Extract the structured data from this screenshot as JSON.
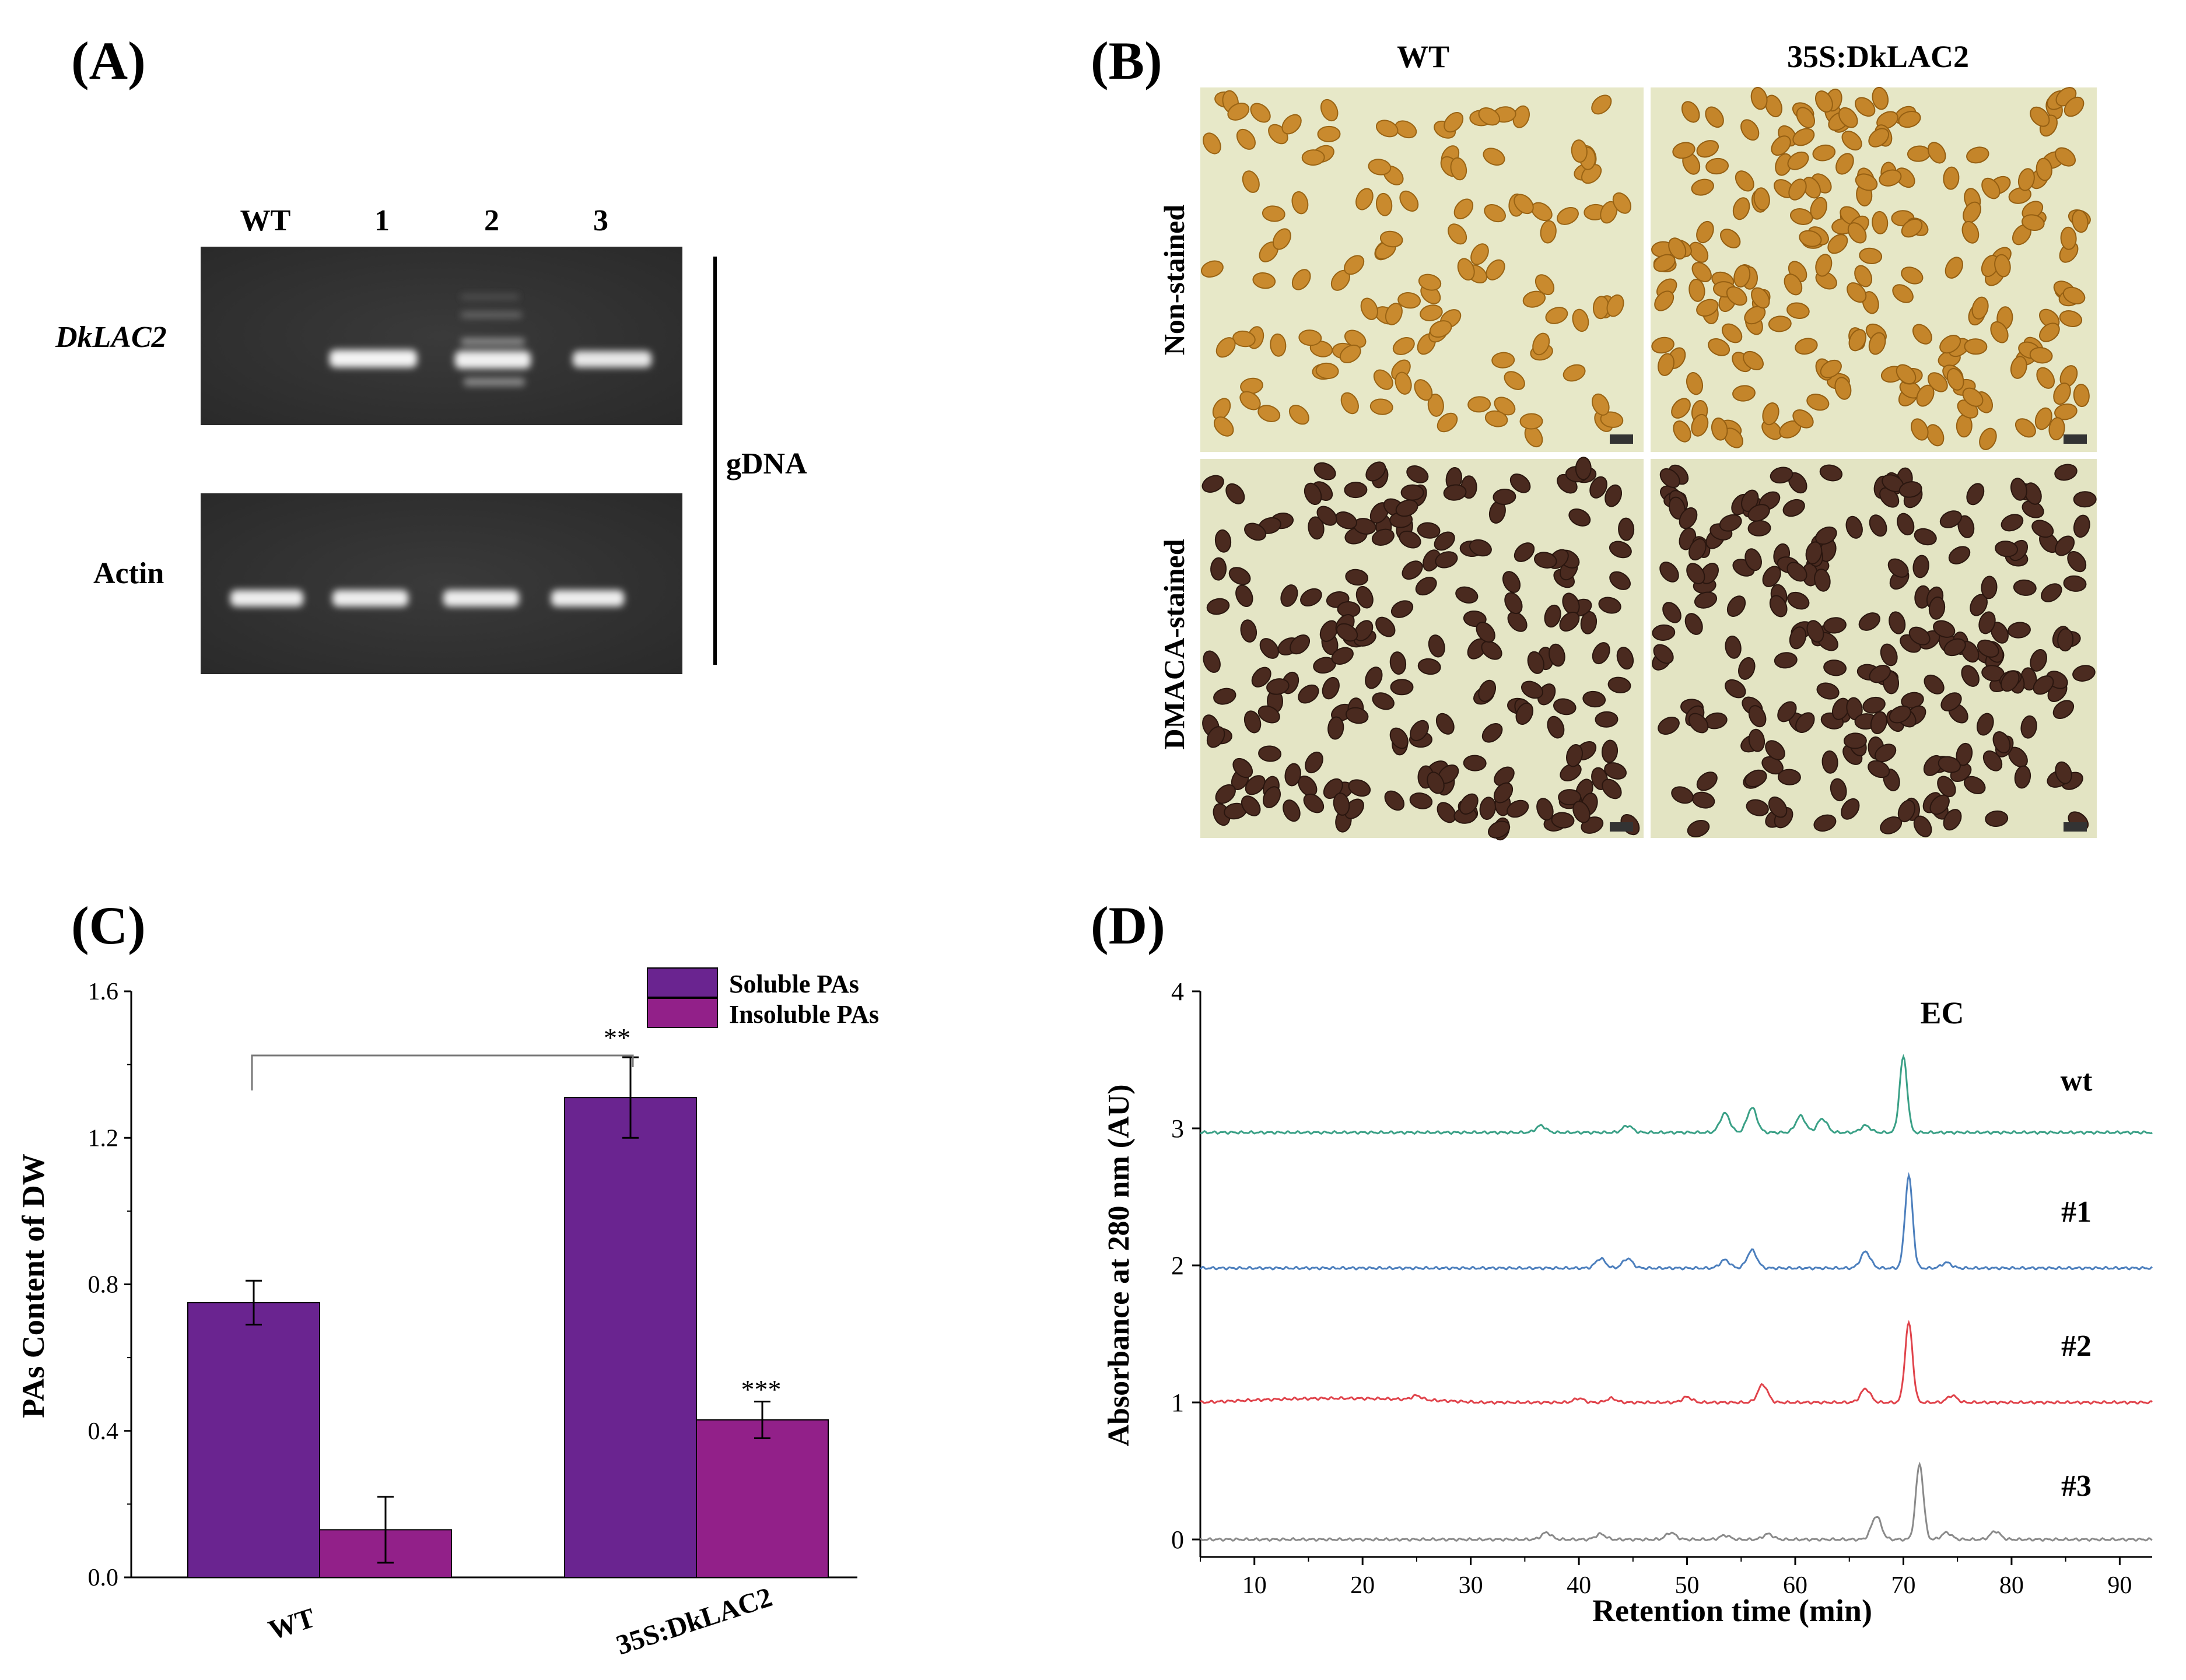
{
  "panels": {
    "a": {
      "label": "(A)",
      "lanes": [
        "WT",
        "1",
        "2",
        "3"
      ],
      "rows": [
        "DkLAC2",
        "Actin"
      ],
      "bracket_label": "gDNA"
    },
    "b": {
      "label": "(B)",
      "columns": [
        "WT",
        "35S:DkLAC2"
      ],
      "rows": [
        "Non-stained",
        "DMACA-stained"
      ]
    },
    "c": {
      "label": "(C)",
      "significance": [
        "**",
        "***"
      ]
    },
    "d": {
      "label": "(D)",
      "peak_label": "EC"
    }
  },
  "colors": {
    "soluble": "#6a2490",
    "insoluble": "#922089",
    "wt_trace": "#3aa086",
    "trace1": "#4c7fbd",
    "trace2": "#e0434b",
    "trace3": "#8a8a8a"
  },
  "chart_data": [
    {
      "type": "bar",
      "panel": "C",
      "categories": [
        "WT",
        "35S:DkLAC2"
      ],
      "series": [
        {
          "name": "Soluble PAs",
          "values": [
            0.75,
            1.31
          ],
          "errors": [
            0.06,
            0.11
          ]
        },
        {
          "name": "Insoluble PAs",
          "values": [
            0.13,
            0.43
          ],
          "errors": [
            0.09,
            0.05
          ]
        }
      ],
      "ylabel": "PAs Content of  DW",
      "xlabel": "",
      "ylim": [
        0.0,
        1.6
      ],
      "yticks": [
        "0.0",
        "0.4",
        "0.8",
        "1.2",
        "1.6"
      ],
      "legend": "top-right",
      "annotations": [
        "**",
        "***"
      ]
    },
    {
      "type": "line",
      "panel": "D",
      "xlabel": "Retention time (min)",
      "ylabel": "Absorbance  at 280 nm (AU)",
      "xlim": [
        5,
        93
      ],
      "ylim": [
        0,
        4
      ],
      "xticks": [
        "10",
        "20",
        "30",
        "40",
        "50",
        "60",
        "70",
        "80",
        "90"
      ],
      "yticks": [
        "0",
        "1",
        "2",
        "3",
        "4"
      ],
      "series": [
        {
          "name": "wt",
          "baseline": 2.97,
          "peaks": [
            [
              36.5,
              0.05
            ],
            [
              44.5,
              0.05
            ],
            [
              53.5,
              0.14
            ],
            [
              56,
              0.18
            ],
            [
              60.5,
              0.12
            ],
            [
              62.5,
              0.1
            ],
            [
              66.5,
              0.05
            ],
            [
              70,
              0.55
            ]
          ]
        },
        {
          "name": "#1",
          "baseline": 1.98,
          "peaks": [
            [
              42,
              0.07
            ],
            [
              44.5,
              0.07
            ],
            [
              53.5,
              0.06
            ],
            [
              56,
              0.13
            ],
            [
              66.5,
              0.12
            ],
            [
              70.5,
              0.67
            ],
            [
              74,
              0.04
            ]
          ]
        },
        {
          "name": "#2",
          "baseline": 1.0,
          "peaks": [
            [
              25,
              0.03
            ],
            [
              40,
              0.03
            ],
            [
              43,
              0.03
            ],
            [
              50,
              0.04
            ],
            [
              57,
              0.13
            ],
            [
              66.5,
              0.1
            ],
            [
              70.5,
              0.58
            ],
            [
              74.5,
              0.05
            ]
          ]
        },
        {
          "name": "#3",
          "baseline": 0.0,
          "peaks": [
            [
              37,
              0.05
            ],
            [
              42,
              0.04
            ],
            [
              48.5,
              0.05
            ],
            [
              53.5,
              0.03
            ],
            [
              57.5,
              0.04
            ],
            [
              67.5,
              0.17
            ],
            [
              71.5,
              0.55
            ],
            [
              74,
              0.05
            ],
            [
              78.5,
              0.06
            ]
          ]
        }
      ],
      "peak_annotation": "EC"
    }
  ]
}
